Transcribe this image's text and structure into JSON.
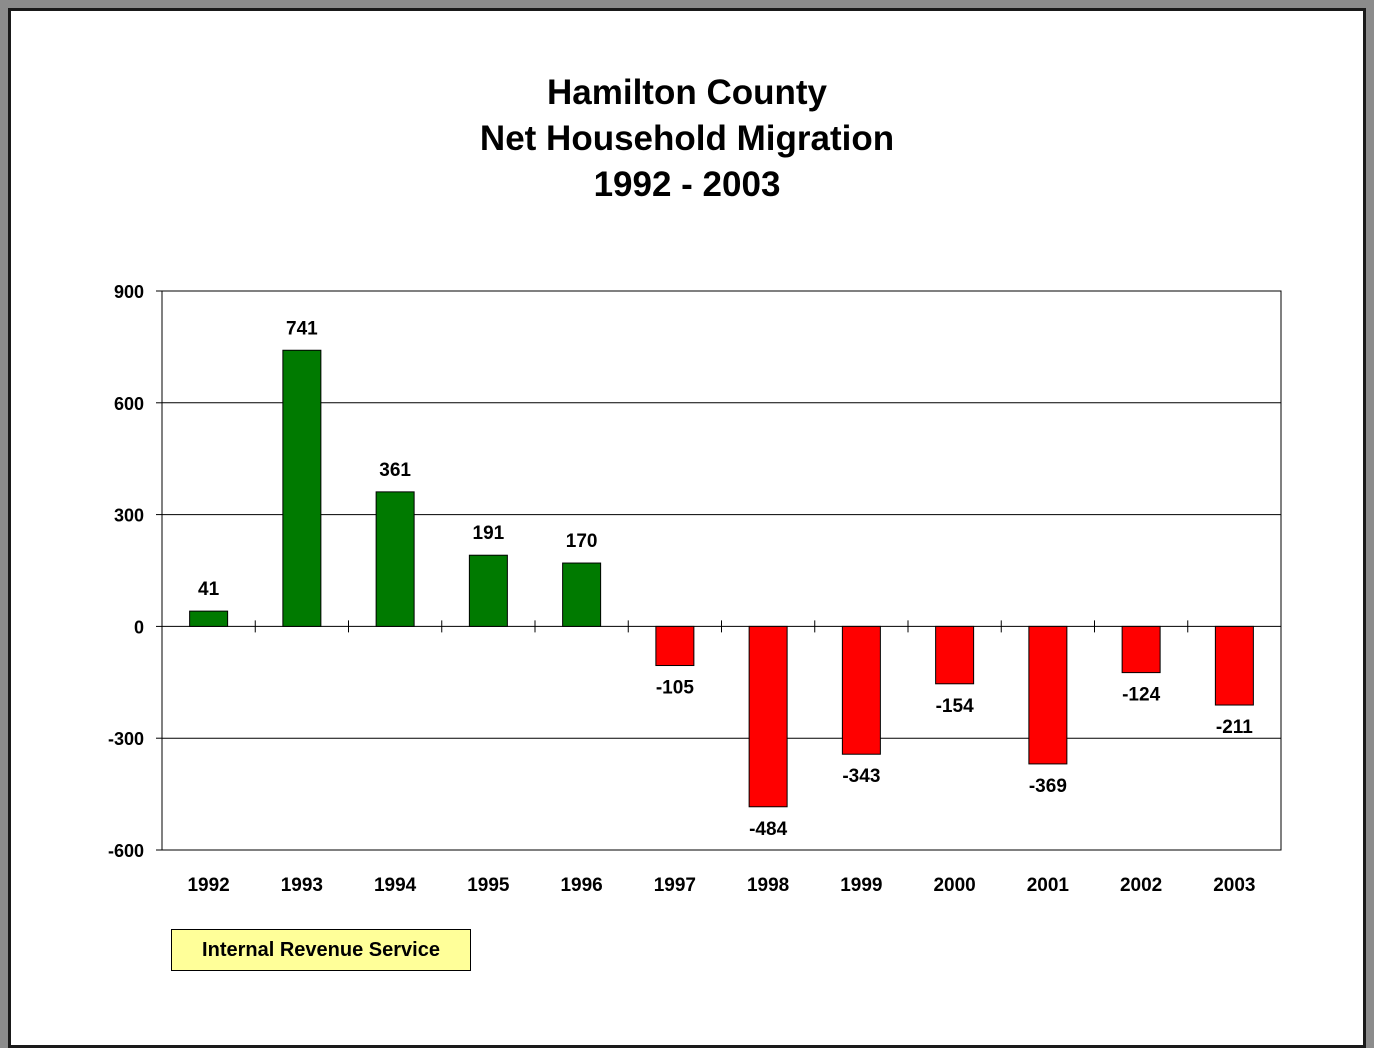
{
  "chart_data": {
    "type": "bar",
    "title": [
      "Hamilton County",
      "Net Household Migration",
      "1992 - 2003"
    ],
    "categories": [
      "1992",
      "1993",
      "1994",
      "1995",
      "1996",
      "1997",
      "1998",
      "1999",
      "2000",
      "2001",
      "2002",
      "2003"
    ],
    "values": [
      41,
      741,
      361,
      191,
      170,
      -105,
      -484,
      -343,
      -154,
      -369,
      -124,
      -211
    ],
    "ylim": [
      -600,
      900
    ],
    "yticks": [
      900,
      600,
      300,
      0,
      -300,
      -600
    ],
    "grid": true,
    "colors": {
      "positive": "#007a00",
      "negative": "#ff0000"
    }
  },
  "source_label": "Internal Revenue Service"
}
